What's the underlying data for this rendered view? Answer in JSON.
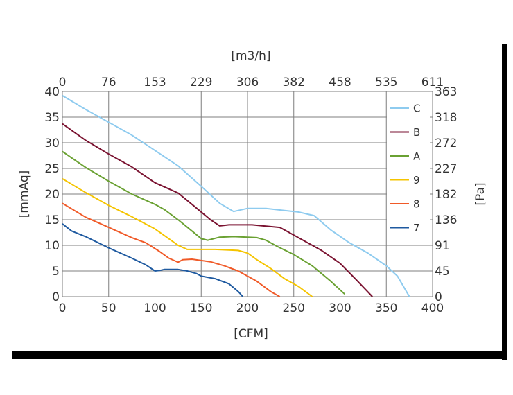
{
  "chart_data": {
    "type": "line",
    "xlabel_bottom": "[CFM]",
    "xlabel_top": "[m3/h]",
    "ylabel_left": "[mmAq]",
    "ylabel_right": "[Pa]",
    "xlim": [
      0,
      400
    ],
    "ylim": [
      0,
      40
    ],
    "x_ticks_bottom": [
      "0",
      "50",
      "100",
      "150",
      "200",
      "250",
      "300",
      "350",
      "400"
    ],
    "x_ticks_top": [
      "0",
      "76",
      "153",
      "229",
      "306",
      "382",
      "458",
      "535",
      "611"
    ],
    "y_ticks_left": [
      "0",
      "5",
      "10",
      "15",
      "20",
      "25",
      "30",
      "35",
      "40"
    ],
    "y_ticks_right": [
      "0",
      "45",
      "91",
      "136",
      "182",
      "227",
      "272",
      "318",
      "363"
    ],
    "grid": true,
    "legend_position": "right",
    "series": [
      {
        "name": "C",
        "color": "#8ecbef",
        "points": [
          [
            0,
            39.2
          ],
          [
            25,
            36.5
          ],
          [
            50,
            34.0
          ],
          [
            75,
            31.5
          ],
          [
            100,
            28.5
          ],
          [
            125,
            25.5
          ],
          [
            150,
            21.5
          ],
          [
            170,
            18.2
          ],
          [
            185,
            16.6
          ],
          [
            200,
            17.2
          ],
          [
            220,
            17.2
          ],
          [
            240,
            16.8
          ],
          [
            255,
            16.5
          ],
          [
            272,
            15.8
          ],
          [
            290,
            13.0
          ],
          [
            310,
            10.5
          ],
          [
            330,
            8.5
          ],
          [
            350,
            6.0
          ],
          [
            362,
            4.0
          ],
          [
            375,
            0
          ]
        ]
      },
      {
        "name": "B",
        "color": "#7a1230",
        "points": [
          [
            0,
            33.7
          ],
          [
            25,
            30.5
          ],
          [
            50,
            27.8
          ],
          [
            75,
            25.3
          ],
          [
            100,
            22.2
          ],
          [
            115,
            21.0
          ],
          [
            125,
            20.2
          ],
          [
            140,
            18.0
          ],
          [
            160,
            15.0
          ],
          [
            170,
            13.8
          ],
          [
            180,
            14.0
          ],
          [
            205,
            14.0
          ],
          [
            235,
            13.5
          ],
          [
            245,
            12.5
          ],
          [
            260,
            11.0
          ],
          [
            280,
            9.0
          ],
          [
            300,
            6.5
          ],
          [
            318,
            3.2
          ],
          [
            335,
            0
          ]
        ]
      },
      {
        "name": "A",
        "color": "#6aa132",
        "points": [
          [
            0,
            28.3
          ],
          [
            25,
            25.2
          ],
          [
            50,
            22.5
          ],
          [
            75,
            20.0
          ],
          [
            100,
            18.0
          ],
          [
            110,
            17.0
          ],
          [
            125,
            15.0
          ],
          [
            140,
            12.8
          ],
          [
            150,
            11.3
          ],
          [
            157,
            11.0
          ],
          [
            170,
            11.6
          ],
          [
            185,
            11.7
          ],
          [
            200,
            11.6
          ],
          [
            210,
            11.5
          ],
          [
            220,
            11.0
          ],
          [
            232,
            9.8
          ],
          [
            250,
            8.2
          ],
          [
            270,
            6.0
          ],
          [
            290,
            3.0
          ],
          [
            305,
            0.5
          ]
        ]
      },
      {
        "name": "9",
        "color": "#f5c400",
        "points": [
          [
            0,
            23.0
          ],
          [
            25,
            20.3
          ],
          [
            50,
            17.8
          ],
          [
            75,
            15.6
          ],
          [
            100,
            13.2
          ],
          [
            115,
            11.3
          ],
          [
            125,
            10.0
          ],
          [
            135,
            9.2
          ],
          [
            165,
            9.2
          ],
          [
            190,
            9.0
          ],
          [
            200,
            8.5
          ],
          [
            210,
            7.2
          ],
          [
            225,
            5.5
          ],
          [
            240,
            3.5
          ],
          [
            255,
            2.0
          ],
          [
            270,
            0
          ]
        ]
      },
      {
        "name": "8",
        "color": "#f05a28",
        "points": [
          [
            0,
            18.2
          ],
          [
            25,
            15.5
          ],
          [
            50,
            13.5
          ],
          [
            75,
            11.5
          ],
          [
            90,
            10.5
          ],
          [
            105,
            8.8
          ],
          [
            115,
            7.5
          ],
          [
            125,
            6.7
          ],
          [
            130,
            7.2
          ],
          [
            140,
            7.3
          ],
          [
            160,
            6.8
          ],
          [
            175,
            6.0
          ],
          [
            190,
            5.0
          ],
          [
            210,
            3.0
          ],
          [
            225,
            1.0
          ],
          [
            235,
            0
          ]
        ]
      },
      {
        "name": "7",
        "color": "#1f5aa0",
        "points": [
          [
            0,
            14.2
          ],
          [
            10,
            12.8
          ],
          [
            25,
            11.7
          ],
          [
            50,
            9.5
          ],
          [
            75,
            7.5
          ],
          [
            90,
            6.2
          ],
          [
            100,
            5.0
          ],
          [
            105,
            5.1
          ],
          [
            110,
            5.3
          ],
          [
            125,
            5.3
          ],
          [
            135,
            5.0
          ],
          [
            145,
            4.5
          ],
          [
            150,
            4.0
          ],
          [
            165,
            3.5
          ],
          [
            180,
            2.5
          ],
          [
            190,
            1.0
          ],
          [
            195,
            0
          ]
        ]
      }
    ]
  }
}
